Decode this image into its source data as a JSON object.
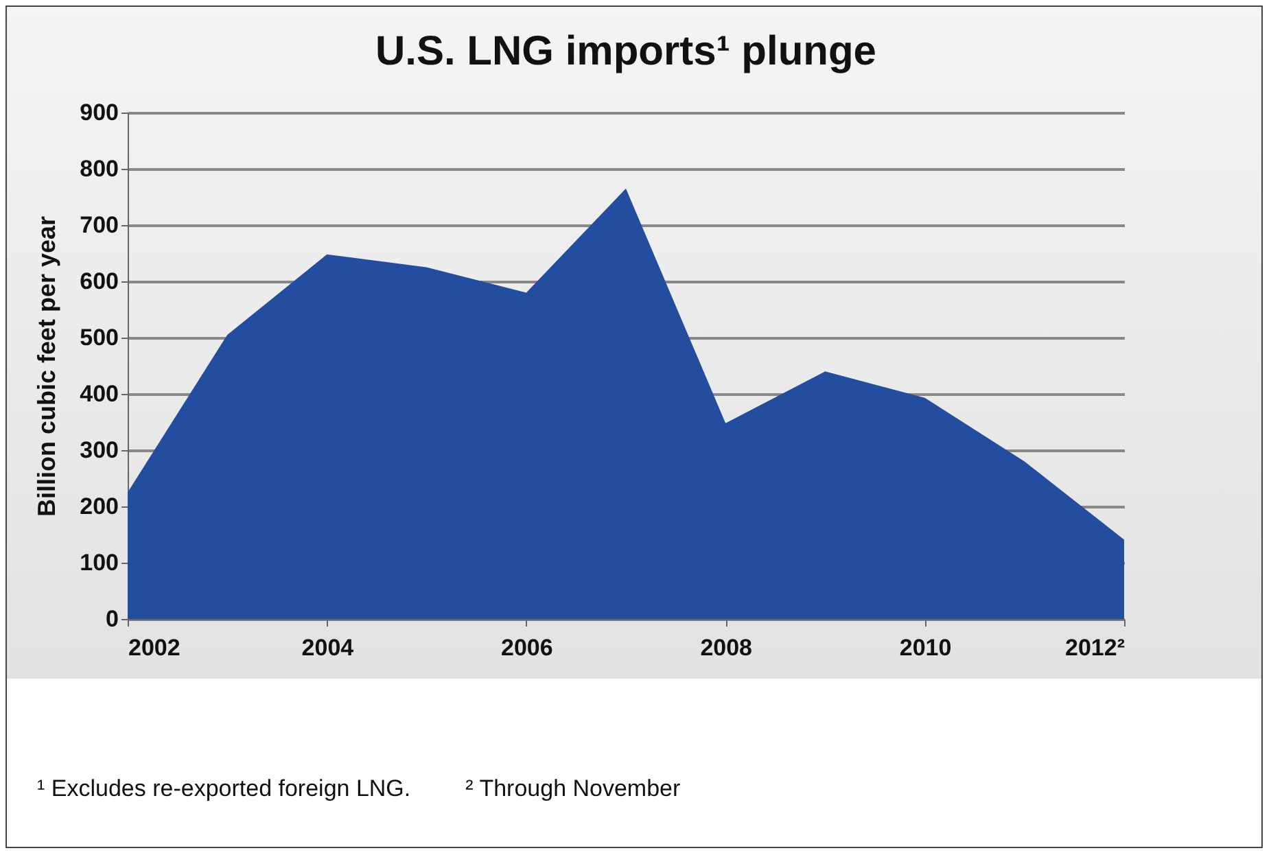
{
  "chart_data": {
    "type": "area",
    "title": "U.S. LNG imports¹ plunge",
    "ylabel": "Billion cubic feet per year",
    "x": [
      2002,
      2003,
      2004,
      2005,
      2006,
      2007,
      2008,
      2009,
      2010,
      2011,
      2012
    ],
    "series": [
      {
        "color": "#234ea0",
        "values": [
          225,
          505,
          648,
          625,
          580,
          765,
          348,
          440,
          393,
          280,
          141
        ]
      }
    ],
    "xlim": [
      2002,
      2012
    ],
    "xticks": [
      2004,
      2006,
      2008,
      2010,
      2002,
      {
        "value": 2012,
        "label": "2012²"
      }
    ],
    "ylim": [
      0,
      900
    ],
    "yticks": [
      0,
      100,
      200,
      300,
      400,
      500,
      600,
      700,
      800,
      900
    ],
    "grid": "y",
    "annotations": [
      "¹ Excludes re-exported foreign LNG.",
      "² Through November"
    ]
  }
}
